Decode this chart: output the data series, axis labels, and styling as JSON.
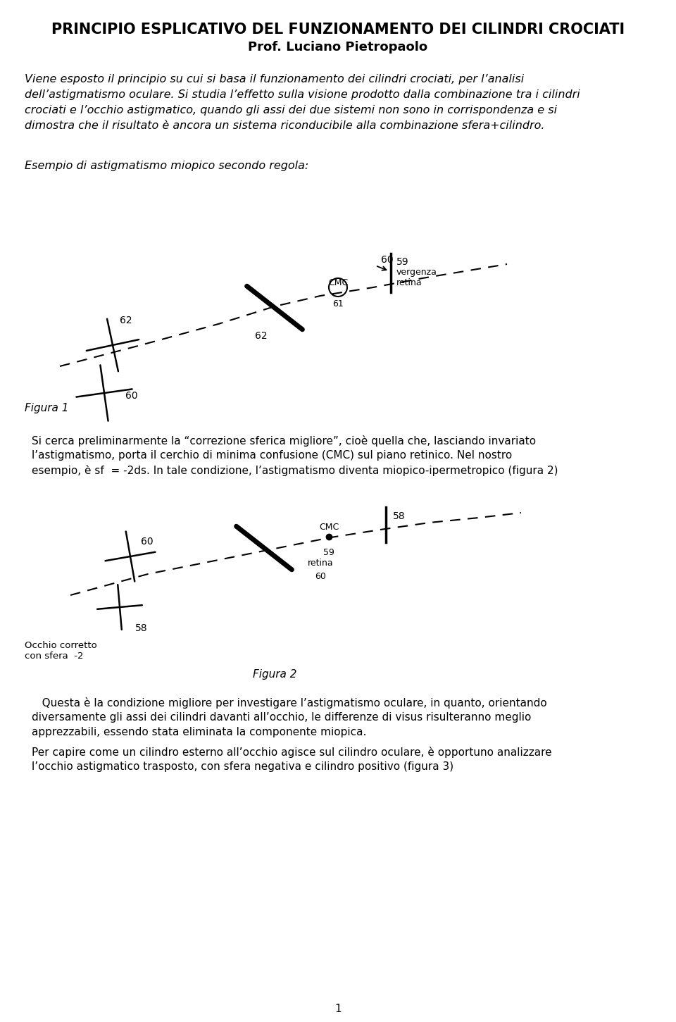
{
  "title": "PRINCIPIO ESPLICATIVO DEL FUNZIONAMENTO DEI CILINDRI CROCIATI",
  "subtitle": "Prof. Luciano Pietropaolo",
  "abstract_lines": [
    "Viene esposto il principio su cui si basa il funzionamento dei cilindri crociati, per l’analisi",
    "dell’astigmatismo oculare. Si studia l’effetto sulla visione prodotto dalla combinazione tra i cilindri",
    "crociati e l’occhio astigmatico, quando gli assi dei due sistemi non sono in corrispondenza e si",
    "dimostra che il risultato è ancora un sistema riconducibile alla combinazione sfera+cilindro."
  ],
  "fig1_label": "Esempio di astigmatismo miopico secondo regola:",
  "figura1_caption": "Figura 1",
  "para1_lines": [
    "Si cerca preliminarmente la “correzione sferica migliore”, cioè quella che, lasciando invariato",
    "l’astigmatismo, porta il cerchio di minima confusione (CMC) sul piano retinico. Nel nostro",
    "esempio, è sf  = -2ds. In tale condizione, l’astigmatismo diventa miopico-ipermetropico (figura 2)"
  ],
  "figura2_caption": "Figura 2",
  "occhio_label": "Occhio corretto\ncon sfera  -2",
  "para2_lines": [
    "   Questa è la condizione migliore per investigare l’astigmatismo oculare, in quanto, orientando",
    "diversamente gli assi dei cilindri davanti all’occhio, le differenze di visus risulteranno meglio",
    "apprezzabili, essendo stata eliminata la componente miopica."
  ],
  "para3_lines": [
    "Per capire come un cilindro esterno all’occhio agisce sul cilindro oculare, è opportuno analizzare",
    "l’occhio astigmatico trasposto, con sfera negativa e cilindro positivo (figura 3)"
  ],
  "page_number": "1",
  "bg_color": "#ffffff",
  "text_color": "#000000"
}
